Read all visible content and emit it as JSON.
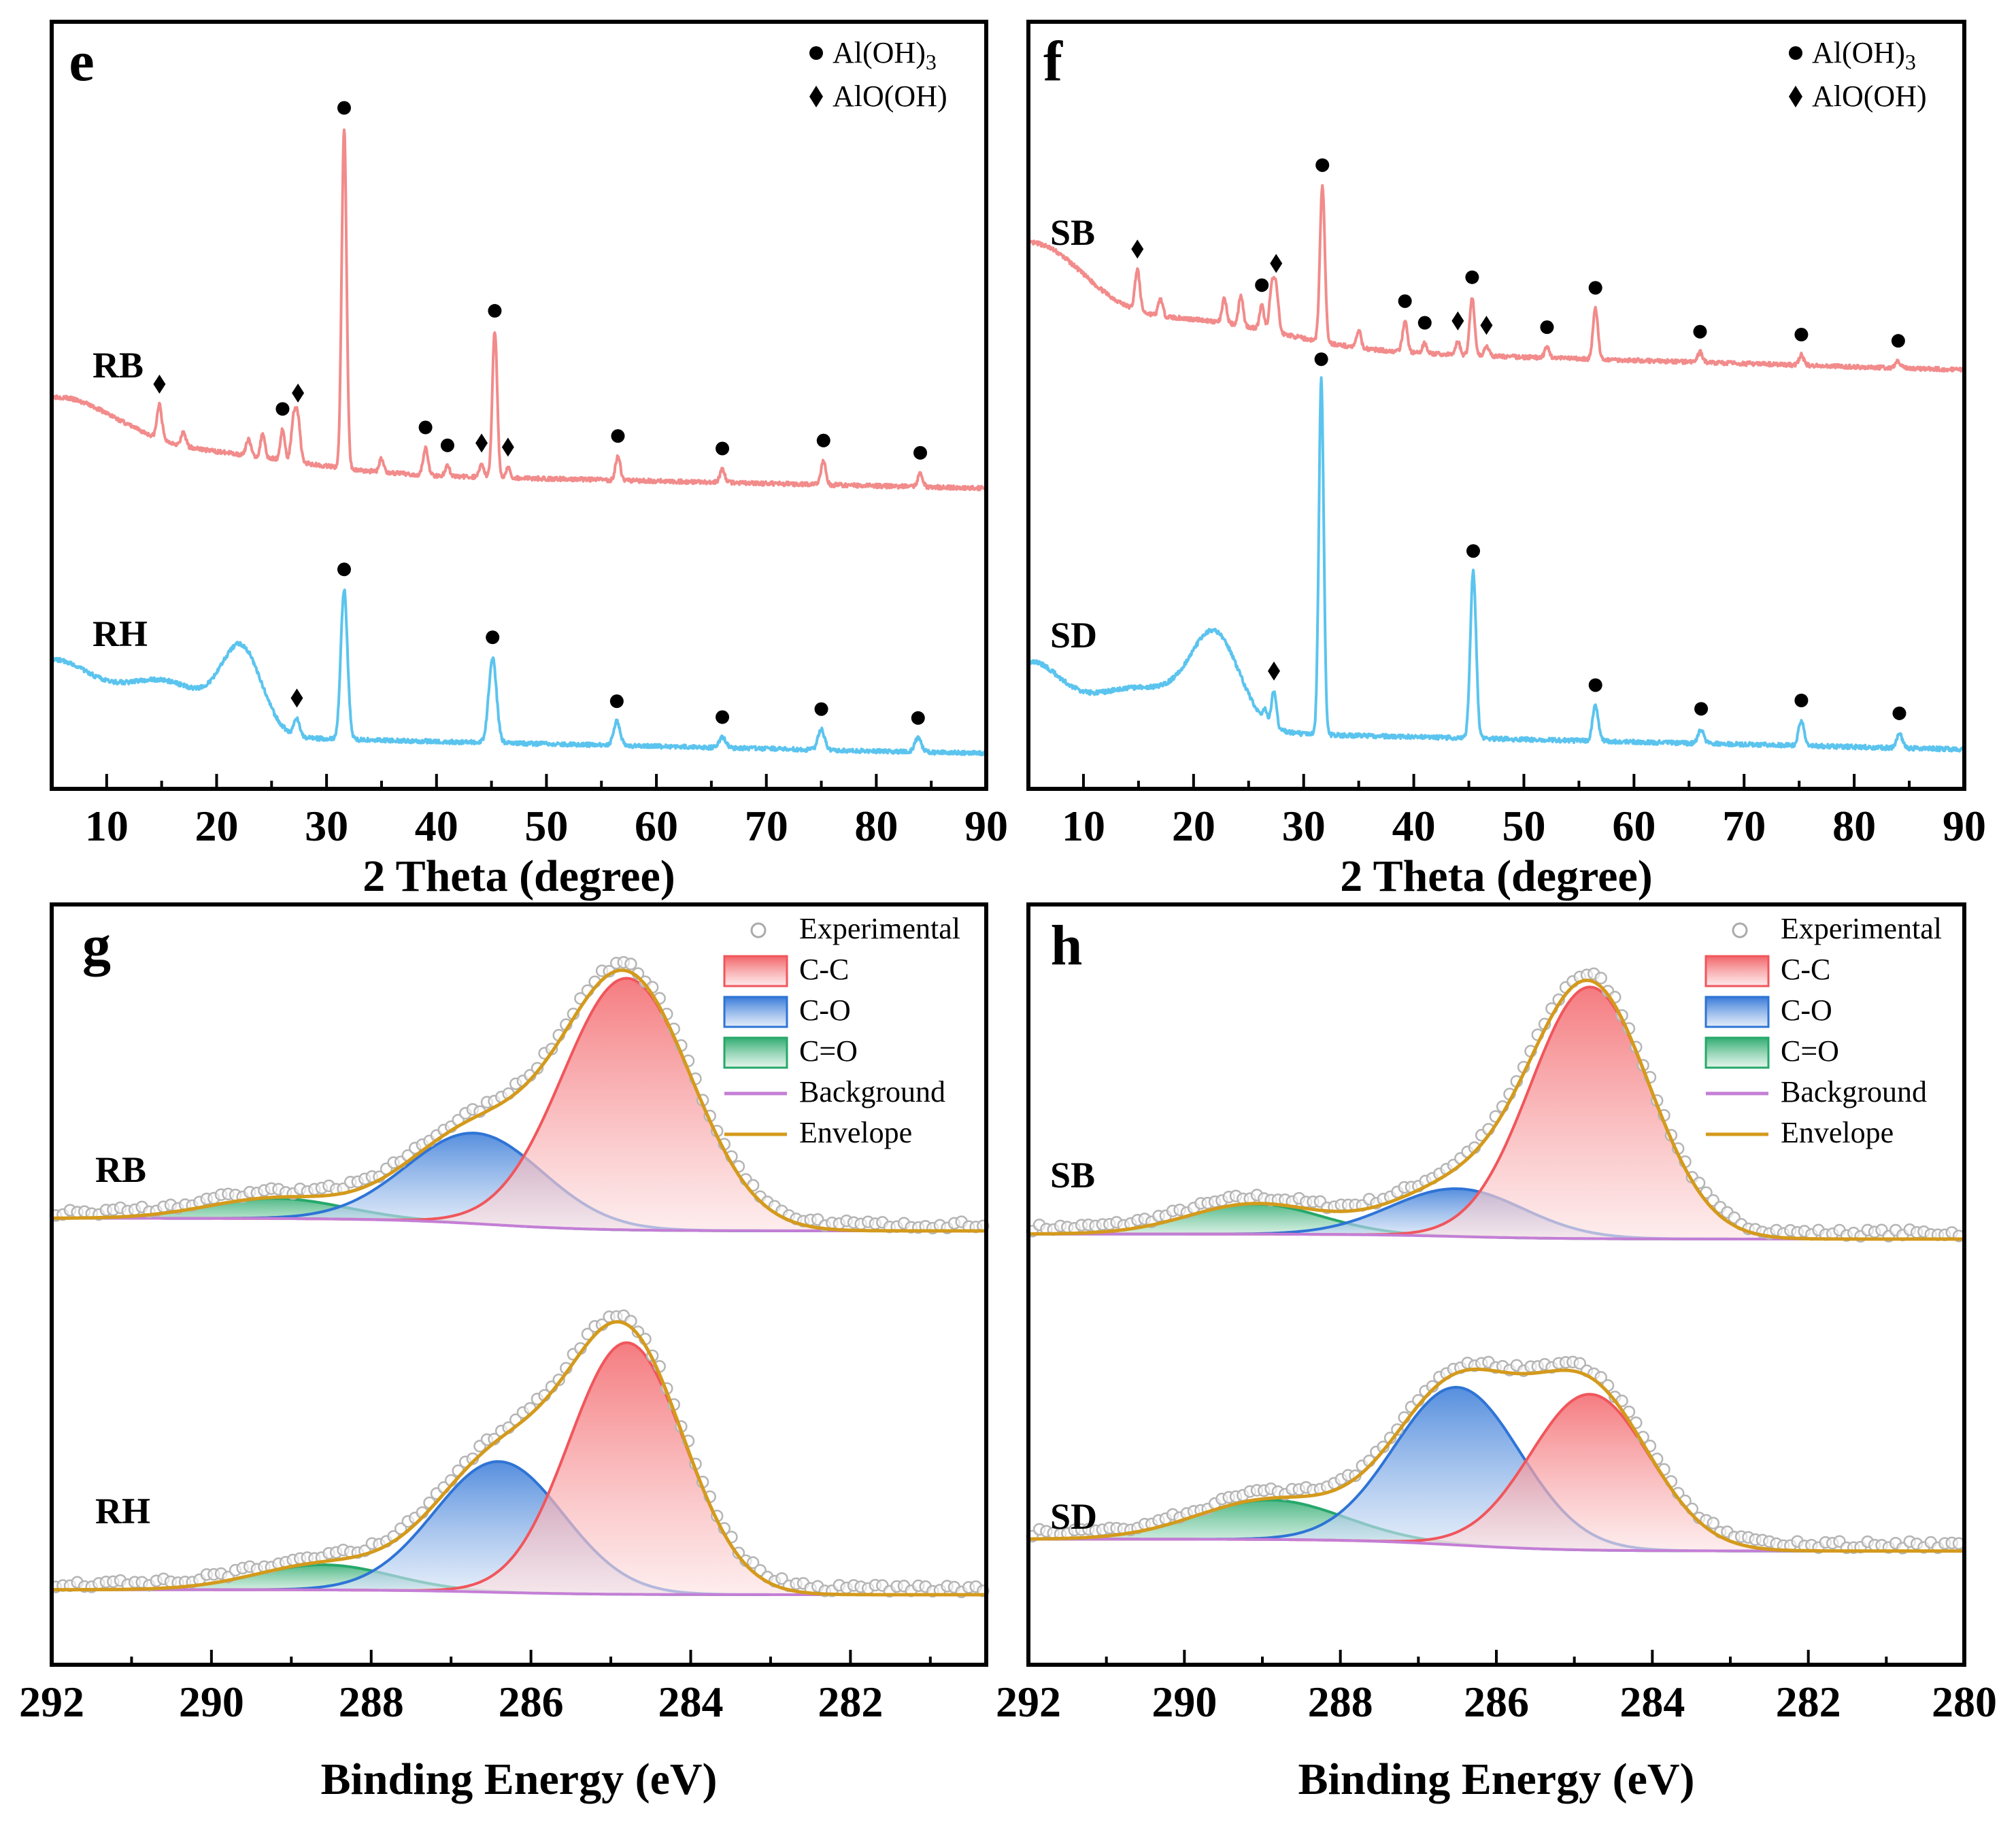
{
  "chart_data": [
    {
      "panel": "e",
      "type": "line",
      "title": "",
      "xlabel": "2 Theta (degree)",
      "ylabel": "",
      "xlim": [
        5,
        90
      ],
      "xticks": [
        "10",
        "20",
        "30",
        "40",
        "50",
        "60",
        "70",
        "80",
        "90"
      ],
      "legend": [
        {
          "marker": "circle",
          "label": "Al(OH)",
          "sub": "3"
        },
        {
          "marker": "diamond",
          "label": "AlO(OH)",
          "sub": ""
        }
      ],
      "series": [
        {
          "name": "RB",
          "color": "#f28b8b",
          "peaks": [
            {
              "x": 14.8,
              "h": 0.1,
              "w": 0.22,
              "marker": "diamond"
            },
            {
              "x": 17.0,
              "h": 0.04,
              "w": 0.2
            },
            {
              "x": 22.9,
              "h": 0.05,
              "w": 0.2
            },
            {
              "x": 24.2,
              "h": 0.07,
              "w": 0.2
            },
            {
              "x": 26.0,
              "h": 0.09,
              "w": 0.2,
              "marker": "circle"
            },
            {
              "x": 27.0,
              "h": 0.12,
              "w": 0.22
            },
            {
              "x": 27.4,
              "h": 0.12,
              "w": 0.22,
              "marker": "diamond"
            },
            {
              "x": 31.6,
              "h": 1.0,
              "w": 0.22,
              "marker": "circle"
            },
            {
              "x": 35.0,
              "h": 0.04,
              "w": 0.2
            },
            {
              "x": 39.0,
              "h": 0.08,
              "w": 0.22,
              "marker": "circle"
            },
            {
              "x": 41.0,
              "h": 0.03,
              "w": 0.2,
              "marker": "circle"
            },
            {
              "x": 44.1,
              "h": 0.04,
              "w": 0.2,
              "marker": "diamond"
            },
            {
              "x": 45.3,
              "h": 0.43,
              "w": 0.22,
              "marker": "circle"
            },
            {
              "x": 46.5,
              "h": 0.03,
              "w": 0.2,
              "marker": "diamond"
            },
            {
              "x": 56.5,
              "h": 0.07,
              "w": 0.22,
              "marker": "circle"
            },
            {
              "x": 66.0,
              "h": 0.04,
              "w": 0.22,
              "marker": "circle"
            },
            {
              "x": 75.2,
              "h": 0.07,
              "w": 0.22,
              "marker": "circle"
            },
            {
              "x": 84.0,
              "h": 0.04,
              "w": 0.22,
              "marker": "circle"
            }
          ],
          "humps": [
            {
              "x": 5,
              "h": 0.2,
              "w": 6
            },
            {
              "x": 20,
              "h": 0.05,
              "w": 8
            }
          ]
        },
        {
          "name": "RH",
          "color": "#5bc4ee",
          "peaks": [
            {
              "x": 27.3,
              "h": 0.05,
              "w": 0.25,
              "marker": "diamond"
            },
            {
              "x": 31.6,
              "h": 0.44,
              "w": 0.3,
              "marker": "circle"
            },
            {
              "x": 45.1,
              "h": 0.25,
              "w": 0.35,
              "marker": "circle"
            },
            {
              "x": 56.4,
              "h": 0.07,
              "w": 0.3,
              "marker": "circle"
            },
            {
              "x": 66.0,
              "h": 0.03,
              "w": 0.3,
              "marker": "circle"
            },
            {
              "x": 75.0,
              "h": 0.06,
              "w": 0.3,
              "marker": "circle"
            },
            {
              "x": 83.8,
              "h": 0.04,
              "w": 0.3,
              "marker": "circle"
            }
          ],
          "humps": [
            {
              "x": 5,
              "h": 0.2,
              "w": 3.5
            },
            {
              "x": 15,
              "h": 0.16,
              "w": 4.5
            },
            {
              "x": 22.3,
              "h": 0.23,
              "w": 1.8
            }
          ]
        }
      ]
    },
    {
      "panel": "f",
      "type": "line",
      "title": "",
      "xlabel": "2 Theta (degree)",
      "ylabel": "",
      "xlim": [
        5,
        90
      ],
      "xticks": [
        "10",
        "20",
        "30",
        "40",
        "50",
        "60",
        "70",
        "80",
        "90"
      ],
      "legend": [
        {
          "marker": "circle",
          "label": "Al(OH)",
          "sub": "3"
        },
        {
          "marker": "diamond",
          "label": "AlO(OH)",
          "sub": ""
        }
      ],
      "series": [
        {
          "name": "SB",
          "color": "#f28b8b",
          "peaks": [
            {
              "x": 14.9,
              "h": 0.12,
              "w": 0.22,
              "marker": "diamond"
            },
            {
              "x": 17.0,
              "h": 0.05,
              "w": 0.2
            },
            {
              "x": 22.8,
              "h": 0.07,
              "w": 0.2
            },
            {
              "x": 24.3,
              "h": 0.09,
              "w": 0.2
            },
            {
              "x": 26.2,
              "h": 0.07,
              "w": 0.2,
              "marker": "circle"
            },
            {
              "x": 27.1,
              "h": 0.12,
              "w": 0.22
            },
            {
              "x": 27.5,
              "h": 0.12,
              "w": 0.22,
              "marker": "diamond"
            },
            {
              "x": 31.7,
              "h": 0.46,
              "w": 0.22,
              "marker": "circle"
            },
            {
              "x": 35.0,
              "h": 0.05,
              "w": 0.2
            },
            {
              "x": 39.2,
              "h": 0.09,
              "w": 0.22,
              "marker": "circle"
            },
            {
              "x": 41.0,
              "h": 0.03,
              "w": 0.2,
              "marker": "circle"
            },
            {
              "x": 44.0,
              "h": 0.04,
              "w": 0.2,
              "marker": "diamond"
            },
            {
              "x": 45.3,
              "h": 0.17,
              "w": 0.22,
              "marker": "circle"
            },
            {
              "x": 46.6,
              "h": 0.03,
              "w": 0.2,
              "marker": "diamond"
            },
            {
              "x": 52.1,
              "h": 0.03,
              "w": 0.22,
              "marker": "circle"
            },
            {
              "x": 56.5,
              "h": 0.15,
              "w": 0.22,
              "marker": "circle"
            },
            {
              "x": 66.0,
              "h": 0.03,
              "w": 0.22,
              "marker": "circle"
            },
            {
              "x": 75.2,
              "h": 0.03,
              "w": 0.22,
              "marker": "circle"
            },
            {
              "x": 84.0,
              "h": 0.02,
              "w": 0.22,
              "marker": "circle"
            }
          ],
          "humps": [
            {
              "x": 5,
              "h": 0.28,
              "w": 5
            },
            {
              "x": 20,
              "h": 0.08,
              "w": 8
            }
          ]
        },
        {
          "name": "SD",
          "color": "#5bc4ee",
          "peaks": [
            {
              "x": 26.5,
              "h": 0.03,
              "w": 0.2
            },
            {
              "x": 27.3,
              "h": 0.1,
              "w": 0.22,
              "marker": "diamond"
            },
            {
              "x": 31.6,
              "h": 1.0,
              "w": 0.22,
              "marker": "circle"
            },
            {
              "x": 45.4,
              "h": 0.47,
              "w": 0.26,
              "marker": "circle"
            },
            {
              "x": 56.5,
              "h": 0.1,
              "w": 0.26,
              "marker": "circle"
            },
            {
              "x": 66.1,
              "h": 0.04,
              "w": 0.26,
              "marker": "circle"
            },
            {
              "x": 75.2,
              "h": 0.07,
              "w": 0.26,
              "marker": "circle"
            },
            {
              "x": 84.1,
              "h": 0.04,
              "w": 0.26,
              "marker": "circle"
            }
          ],
          "humps": [
            {
              "x": 5,
              "h": 0.17,
              "w": 2.8
            },
            {
              "x": 15,
              "h": 0.12,
              "w": 5
            },
            {
              "x": 22.0,
              "h": 0.24,
              "w": 2.2
            }
          ]
        }
      ]
    },
    {
      "panel": "g",
      "type": "area",
      "title": "",
      "xlabel": "Binding Energy (eV)",
      "ylabel": "",
      "xlim": [
        292,
        280.3
      ],
      "xticks": [
        "292",
        "290",
        "288",
        "286",
        "284",
        "282"
      ],
      "legend": [
        {
          "key": "experimental",
          "label": "Experimental"
        },
        {
          "key": "cc",
          "label": "C-C"
        },
        {
          "key": "co",
          "label": "C-O"
        },
        {
          "key": "c=o",
          "label": "C=O"
        },
        {
          "key": "background",
          "label": "Background"
        },
        {
          "key": "envelope",
          "label": "Envelope"
        }
      ],
      "spectra": [
        {
          "name": "RB",
          "bg_high": 0.05,
          "bg_low": 0.0,
          "components": [
            {
              "name": "C-C",
              "center": 284.8,
              "height": 1.0,
              "fwhm": 1.9
            },
            {
              "name": "C-O",
              "center": 286.7,
              "height": 0.36,
              "fwhm": 2.0
            },
            {
              "name": "C=O",
              "center": 289.2,
              "height": 0.08,
              "fwhm": 2.0
            }
          ]
        },
        {
          "name": "RH",
          "bg_high": 0.02,
          "bg_low": 0.0,
          "components": [
            {
              "name": "C-C",
              "center": 284.8,
              "height": 1.0,
              "fwhm": 1.7
            },
            {
              "name": "C-O",
              "center": 286.4,
              "height": 0.52,
              "fwhm": 1.9
            },
            {
              "name": "C=O",
              "center": 288.6,
              "height": 0.1,
              "fwhm": 2.0
            }
          ]
        }
      ]
    },
    {
      "panel": "h",
      "type": "area",
      "title": "",
      "xlabel": "Binding Energy (eV)",
      "ylabel": "",
      "xlim": [
        292,
        280
      ],
      "xticks": [
        "292",
        "290",
        "288",
        "286",
        "284",
        "282",
        "280"
      ],
      "legend": [
        {
          "key": "experimental",
          "label": "Experimental"
        },
        {
          "key": "cc",
          "label": "C-C"
        },
        {
          "key": "co",
          "label": "C-O"
        },
        {
          "key": "c=o",
          "label": "C=O"
        },
        {
          "key": "background",
          "label": "Background"
        },
        {
          "key": "envelope",
          "label": "Envelope"
        }
      ],
      "spectra": [
        {
          "name": "SB",
          "bg_high": 0.02,
          "bg_low": 0.0,
          "components": [
            {
              "name": "C-C",
              "center": 284.8,
              "height": 1.0,
              "fwhm": 1.8
            },
            {
              "name": "C-O",
              "center": 286.5,
              "height": 0.19,
              "fwhm": 2.0
            },
            {
              "name": "C=O",
              "center": 289.1,
              "height": 0.12,
              "fwhm": 2.0
            }
          ]
        },
        {
          "name": "SD",
          "bg_high": 0.03,
          "bg_low": -0.03,
          "components": [
            {
              "name": "C-C",
              "center": 284.8,
              "height": 0.79,
              "fwhm": 1.8
            },
            {
              "name": "C-O",
              "center": 286.5,
              "height": 0.8,
              "fwhm": 1.9
            },
            {
              "name": "C=O",
              "center": 288.9,
              "height": 0.2,
              "fwhm": 2.2
            }
          ]
        }
      ]
    }
  ]
}
